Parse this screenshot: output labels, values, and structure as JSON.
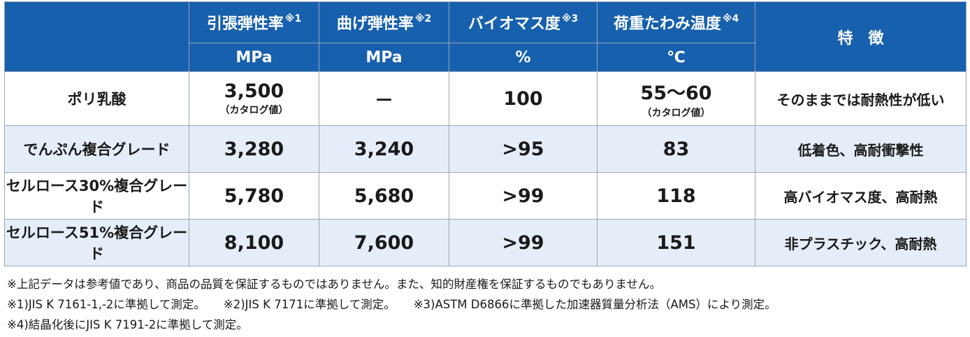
{
  "header": {
    "columns": [
      {
        "label": "引張弾性率",
        "mark": "※1",
        "unit": "MPa"
      },
      {
        "label": "曲げ弾性率",
        "mark": "※2",
        "unit": "MPa"
      },
      {
        "label": "バイオマス度",
        "mark": "※3",
        "unit": "%"
      },
      {
        "label": "荷重たわみ温度",
        "mark": "※4",
        "unit": "℃"
      }
    ],
    "feature_label": "特　徴"
  },
  "rows": [
    {
      "name": "ポリ乳酸",
      "tensile": "3,500",
      "tensile_note": "（カタログ値）",
      "flexural": "－",
      "biomass": "100",
      "hdt": "55～60",
      "hdt_note": "（カタログ値）",
      "feature": "そのままでは耐熱性が低い"
    },
    {
      "name": "でんぷん複合グレード",
      "tensile": "3,280",
      "flexural": "3,240",
      "biomass": ">95",
      "hdt": "83",
      "feature": "低着色、高耐衝撃性"
    },
    {
      "name": "セルロース30%複合グレード",
      "tensile": "5,780",
      "flexural": "5,680",
      "biomass": ">99",
      "hdt": "118",
      "feature": "高バイオマス度、高耐熱"
    },
    {
      "name": "セルロース51%複合グレード",
      "tensile": "8,100",
      "flexural": "7,600",
      "biomass": ">99",
      "hdt": "151",
      "feature": "非プラスチック、高耐熱"
    }
  ],
  "notes": {
    "disclaimer": "※上記データは参考値であり、商品の品質を保証するものではありません。また、知的財産権を保証するものでもありません。",
    "n1": "※1)JIS K 7161-1,-2に準拠して測定。",
    "n2": "※2)JIS K 7171に準拠して測定。",
    "n3": "※3)ASTM D6866に準拠した加速器質量分析法（AMS）により測定。",
    "n4": "※4)結晶化後にJIS K 7191-2に準拠して測定。"
  }
}
